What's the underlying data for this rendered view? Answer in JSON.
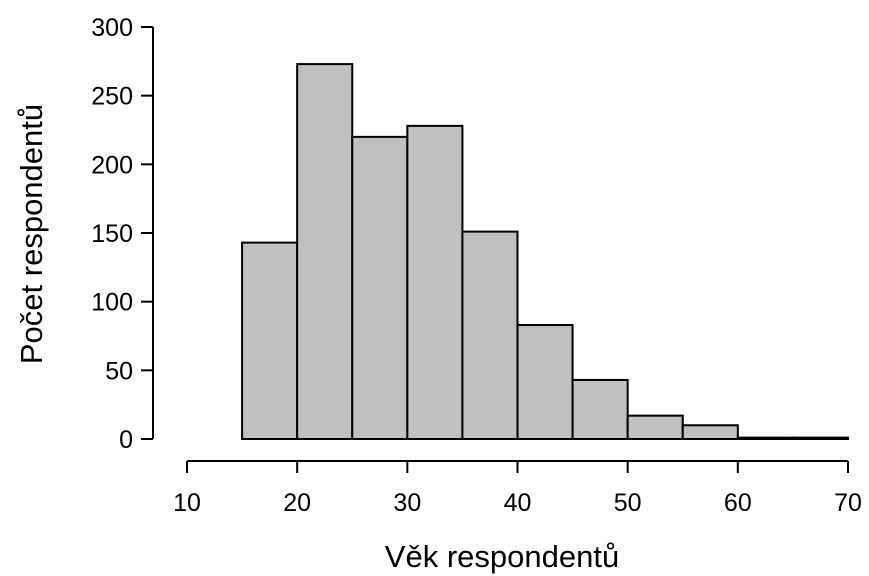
{
  "chart_data": {
    "type": "bar",
    "histogram": true,
    "xlabel": "Věk respondentů",
    "ylabel": "Počet respondentů",
    "bins": [
      {
        "x0": 15,
        "x1": 20,
        "value": 143
      },
      {
        "x0": 20,
        "x1": 25,
        "value": 273
      },
      {
        "x0": 25,
        "x1": 30,
        "value": 220
      },
      {
        "x0": 30,
        "x1": 35,
        "value": 228
      },
      {
        "x0": 35,
        "x1": 40,
        "value": 151
      },
      {
        "x0": 40,
        "x1": 45,
        "value": 83
      },
      {
        "x0": 45,
        "x1": 50,
        "value": 43
      },
      {
        "x0": 50,
        "x1": 55,
        "value": 17
      },
      {
        "x0": 55,
        "x1": 60,
        "value": 10
      },
      {
        "x0": 60,
        "x1": 65,
        "value": 1
      },
      {
        "x0": 65,
        "x1": 70,
        "value": 1
      }
    ],
    "xlim": [
      10,
      70
    ],
    "ylim": [
      0,
      300
    ],
    "xticks": [
      "10",
      "20",
      "30",
      "40",
      "50",
      "60",
      "70"
    ],
    "yticks": [
      "0",
      "50",
      "100",
      "150",
      "200",
      "250",
      "300"
    ],
    "grid": false,
    "legend": "none"
  }
}
